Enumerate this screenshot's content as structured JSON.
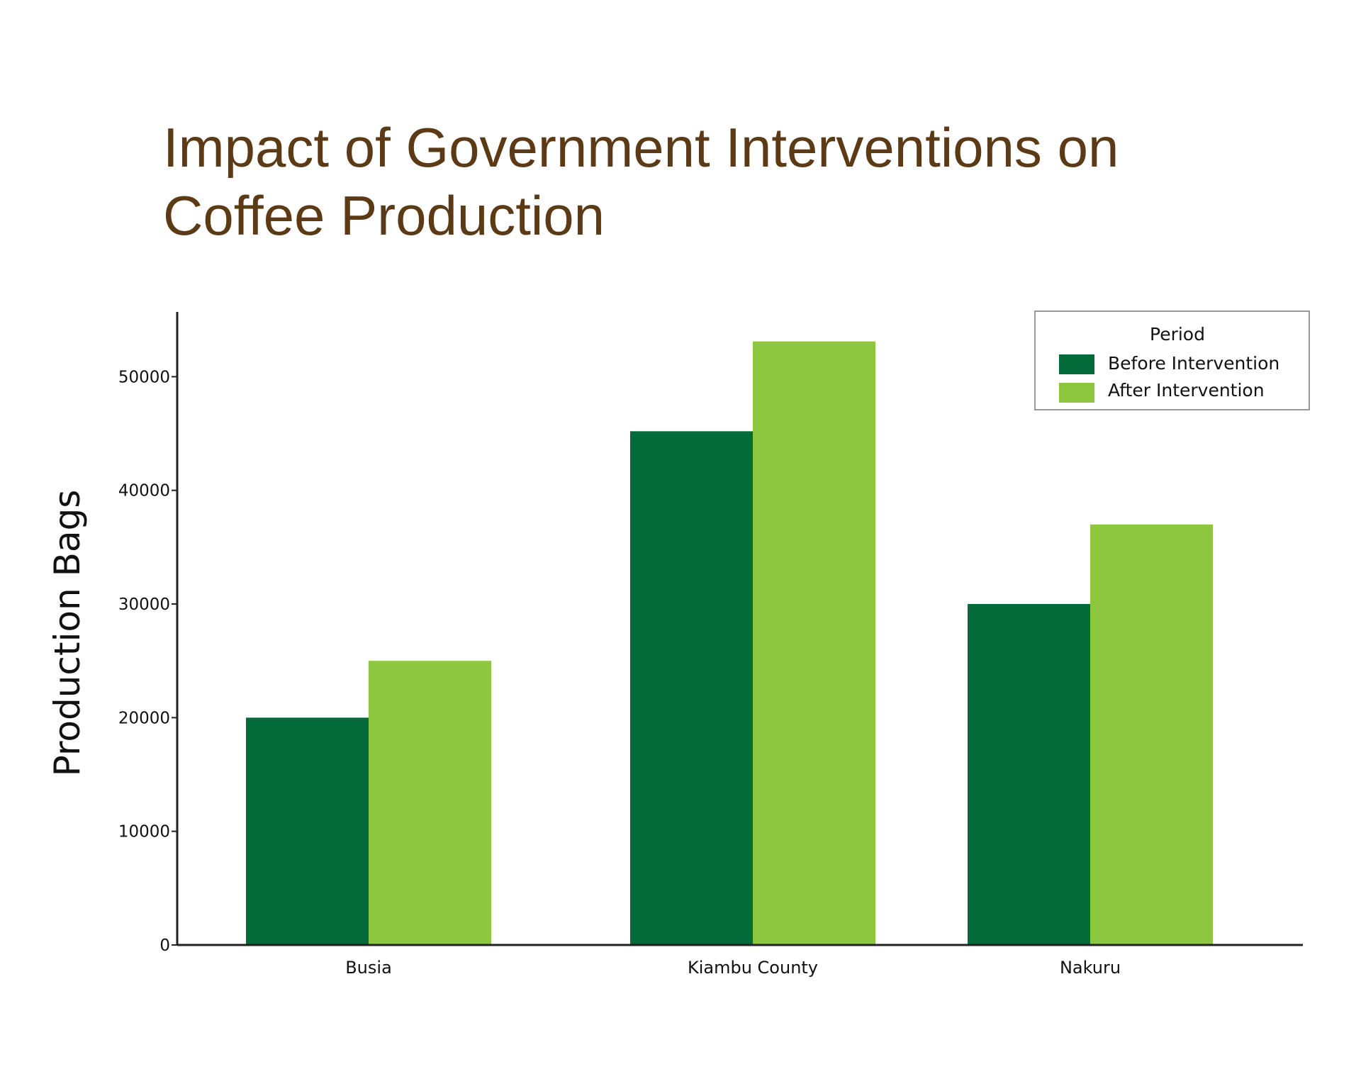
{
  "chart_data": {
    "type": "bar",
    "title": "Impact of Government Interventions on Coffee Production",
    "xlabel": "",
    "ylabel": "Production Bags",
    "categories": [
      "Busia",
      "Kiambu County",
      "Nakuru"
    ],
    "series": [
      {
        "name": "Before Intervention",
        "values": [
          20000,
          45200,
          30000
        ],
        "color": "#036a3a"
      },
      {
        "name": "After Intervention",
        "values": [
          25000,
          53100,
          37000
        ],
        "color": "#8dc63f"
      }
    ],
    "yticks": [
      0,
      10000,
      20000,
      30000,
      40000,
      50000
    ],
    "ylim": [
      0,
      55700
    ],
    "grid": false,
    "legend": {
      "title": "Period",
      "position": "top-right"
    }
  }
}
